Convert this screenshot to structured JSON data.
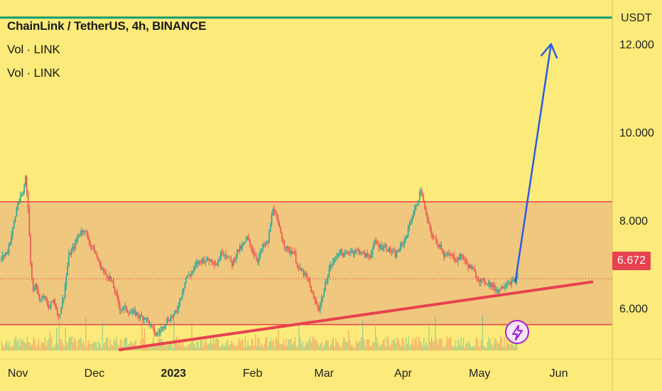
{
  "header": {
    "title": "ChainLink / TetherUS, 4h, BINANCE",
    "indicators": [
      "Vol · LINK",
      "Vol · LINK"
    ]
  },
  "price_axis": {
    "currency": "USDT",
    "current_price_label": "6.672"
  },
  "icons": {
    "alert": "lightning-icon"
  },
  "colors": {
    "background": "#FCEB7A",
    "range_zone": "#EFC77E",
    "range_border": "#E8414F",
    "trendline": "#E8414F",
    "projection_arrow": "#2E5BE6",
    "target_line": "#119C6F",
    "up_candle": "#26A69A",
    "down_candle": "#EF5350",
    "price_tag": "#E8414F"
  },
  "chart_data": {
    "type": "line",
    "title": "ChainLink / TetherUS, 4h, BINANCE",
    "xlabel": "",
    "ylabel": "USDT",
    "ylim": [
      4.85,
      13.0
    ],
    "y_ticks": [
      "12.000",
      "10.000",
      "8.000",
      "6.000"
    ],
    "y_tick_values": [
      12,
      10,
      8,
      6
    ],
    "x_ticks": [
      "Nov",
      "Dec",
      "2023",
      "Feb",
      "Mar",
      "Apr",
      "May",
      "Jun"
    ],
    "x_tick_days": [
      0,
      30,
      61,
      92,
      120,
      151,
      181,
      212
    ],
    "x_range_days": [
      -7,
      233
    ],
    "grid": false,
    "series": [
      {
        "values_x_days": [
          -7,
          -4,
          -2,
          0,
          2,
          3,
          4,
          5,
          6,
          7,
          8,
          9,
          10,
          12,
          14,
          16,
          18,
          20,
          22,
          24,
          26,
          28,
          30,
          32,
          34,
          36,
          38,
          40,
          42,
          44,
          46,
          48,
          50,
          52,
          54,
          56,
          58,
          60,
          62,
          64,
          66,
          68,
          70,
          72,
          74,
          76,
          78,
          80,
          82,
          84,
          86,
          88,
          90,
          92,
          94,
          96,
          98,
          100,
          102,
          104,
          106,
          108,
          110,
          112,
          114,
          116,
          118,
          120,
          122,
          124,
          126,
          128,
          130,
          132,
          134,
          136,
          138,
          140,
          142,
          144,
          146,
          148,
          150,
          152,
          154,
          156,
          158,
          160,
          162,
          164,
          166,
          167,
          168,
          170,
          172,
          174,
          176,
          178,
          180,
          182,
          184,
          186,
          188,
          190,
          192,
          194,
          196
        ],
        "values": [
          7.1,
          7.3,
          7.8,
          8.4,
          8.6,
          9.0,
          8.3,
          7.0,
          6.4,
          6.6,
          6.3,
          6.2,
          6.3,
          6.0,
          6.2,
          5.8,
          6.3,
          7.2,
          7.4,
          7.7,
          7.8,
          7.5,
          7.3,
          7.0,
          6.8,
          6.7,
          6.4,
          6.0,
          6.0,
          5.9,
          5.9,
          5.8,
          5.8,
          5.6,
          5.4,
          5.5,
          5.7,
          5.8,
          5.9,
          6.3,
          6.7,
          6.8,
          7.0,
          7.1,
          7.1,
          7.1,
          7.0,
          7.3,
          7.2,
          7.0,
          7.3,
          7.4,
          7.6,
          7.3,
          7.1,
          7.4,
          7.5,
          8.3,
          7.9,
          7.5,
          7.3,
          7.3,
          6.9,
          6.8,
          6.6,
          6.2,
          6.0,
          6.4,
          6.9,
          7.1,
          7.3,
          7.2,
          7.3,
          7.3,
          7.3,
          7.2,
          7.2,
          7.5,
          7.4,
          7.4,
          7.3,
          7.2,
          7.4,
          7.6,
          8.0,
          8.3,
          8.7,
          8.1,
          7.7,
          7.5,
          7.4,
          7.2,
          7.2,
          7.2,
          7.1,
          7.2,
          7.0,
          6.9,
          6.7,
          6.6,
          6.6,
          6.5,
          6.4,
          6.5,
          6.6,
          6.6,
          6.68
        ]
      }
    ],
    "volume": {
      "label": "Vol · LINK",
      "series_count": 2
    },
    "annotations": {
      "range_zone": {
        "low": 5.63,
        "high": 8.42
      },
      "trendline": {
        "x_days": [
          40,
          225
        ],
        "y": [
          5.06,
          6.6
        ]
      },
      "projection_arrow": {
        "x_days": [
          195,
          209
        ],
        "y": [
          6.6,
          12.0
        ]
      },
      "target_line": {
        "y": 12.6
      },
      "current_price_line": {
        "y": 6.672
      }
    }
  }
}
